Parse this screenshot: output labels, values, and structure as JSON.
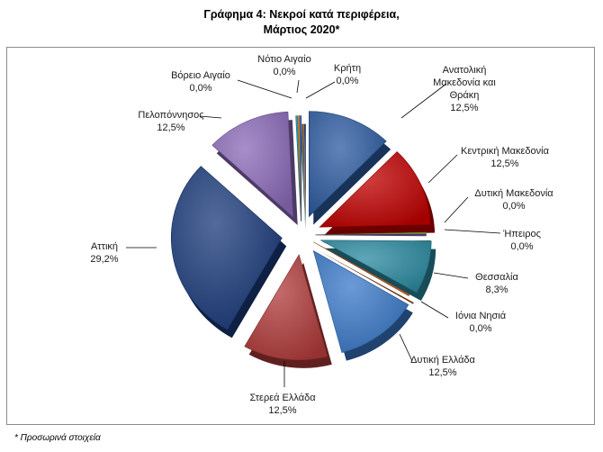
{
  "title_line1": "Γράφημα 4: Νεκροί κατά περιφέρεια,",
  "title_line2": "Μάρτιος 2020*",
  "footnote": "* Προσωρινά στοιχεία",
  "chart_data": {
    "type": "pie",
    "title": "Γράφημα 4: Νεκροί κατά περιφέρεια, Μάρτιος 2020*",
    "exploded": true,
    "three_d": true,
    "legend": "none",
    "slices": [
      {
        "label": "Ανατολική Μακεδονία και Θράκη",
        "value": 12.5,
        "text": "12,5%",
        "color": "#2c5aa0"
      },
      {
        "label": "Κεντρική Μακεδονία",
        "value": 12.5,
        "text": "12,5%",
        "color": "#c00000"
      },
      {
        "label": "Δυτική Μακεδονία",
        "value": 0.0,
        "text": "0,0%",
        "color": "#7aa03c"
      },
      {
        "label": "Ήπειρος",
        "value": 0.0,
        "text": "0,0%",
        "color": "#5a3c82"
      },
      {
        "label": "Θεσσαλία",
        "value": 8.3,
        "text": "8,3%",
        "color": "#2a8aa0"
      },
      {
        "label": "Ιόνια Νησιά",
        "value": 0.0,
        "text": "0,0%",
        "color": "#c0622a"
      },
      {
        "label": "Δυτική Ελλάδα",
        "value": 12.5,
        "text": "12,5%",
        "color": "#3a78c8"
      },
      {
        "label": "Στερεά Ελλάδα",
        "value": 12.5,
        "text": "12,5%",
        "color": "#b03a3a"
      },
      {
        "label": "Αττική",
        "value": 29.2,
        "text": "29,2%",
        "color": "#1a3a7a"
      },
      {
        "label": "Πελοπόννησος",
        "value": 12.5,
        "text": "12,5%",
        "color": "#8a6ab8"
      },
      {
        "label": "Βόρειο Αιγαίο",
        "value": 0.0,
        "text": "0,0%",
        "color": "#2a9ab8"
      },
      {
        "label": "Νότιο Αιγαίο",
        "value": 0.0,
        "text": "0,0%",
        "color": "#e08a2a"
      },
      {
        "label": "Κρήτη",
        "value": 0.0,
        "text": "0,0%",
        "color": "#4a6ab8"
      }
    ]
  }
}
